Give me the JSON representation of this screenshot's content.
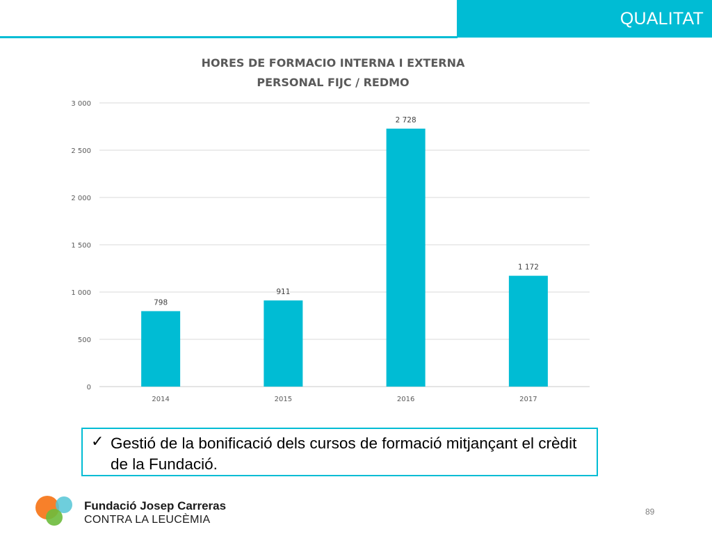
{
  "header": {
    "title": "QUALITAT"
  },
  "chart_data": {
    "type": "bar",
    "title_lines": [
      "HORES DE FORMACIO INTERNA I EXTERNA",
      "PERSONAL  FIJC / REDMO"
    ],
    "categories": [
      "2014",
      "2015",
      "2016",
      "2017"
    ],
    "values": [
      798,
      911,
      2728,
      1172
    ],
    "value_labels": [
      "798",
      "911",
      "2 728",
      "1 172"
    ],
    "y_ticks": [
      0,
      500,
      1000,
      1500,
      2000,
      2500,
      3000
    ],
    "y_tick_labels": [
      "0",
      "500",
      "1 000",
      "1 500",
      "2 000",
      "2 500",
      "3 000"
    ],
    "ylim": [
      0,
      3000
    ],
    "grid": true,
    "legend": "none",
    "bar_color": "#00bcd4"
  },
  "note": {
    "check": "✓",
    "text": "Gestió de la bonificació dels cursos de formació mitjançant el crèdit de la Fundació."
  },
  "footer": {
    "org_name": "Fundació Josep Carreras",
    "org_sub": "CONTRA LA LEUCÈMIA",
    "page_number": "89",
    "logo_colors": [
      "#f7791f",
      "#55c5d6",
      "#6dbb3c"
    ]
  }
}
